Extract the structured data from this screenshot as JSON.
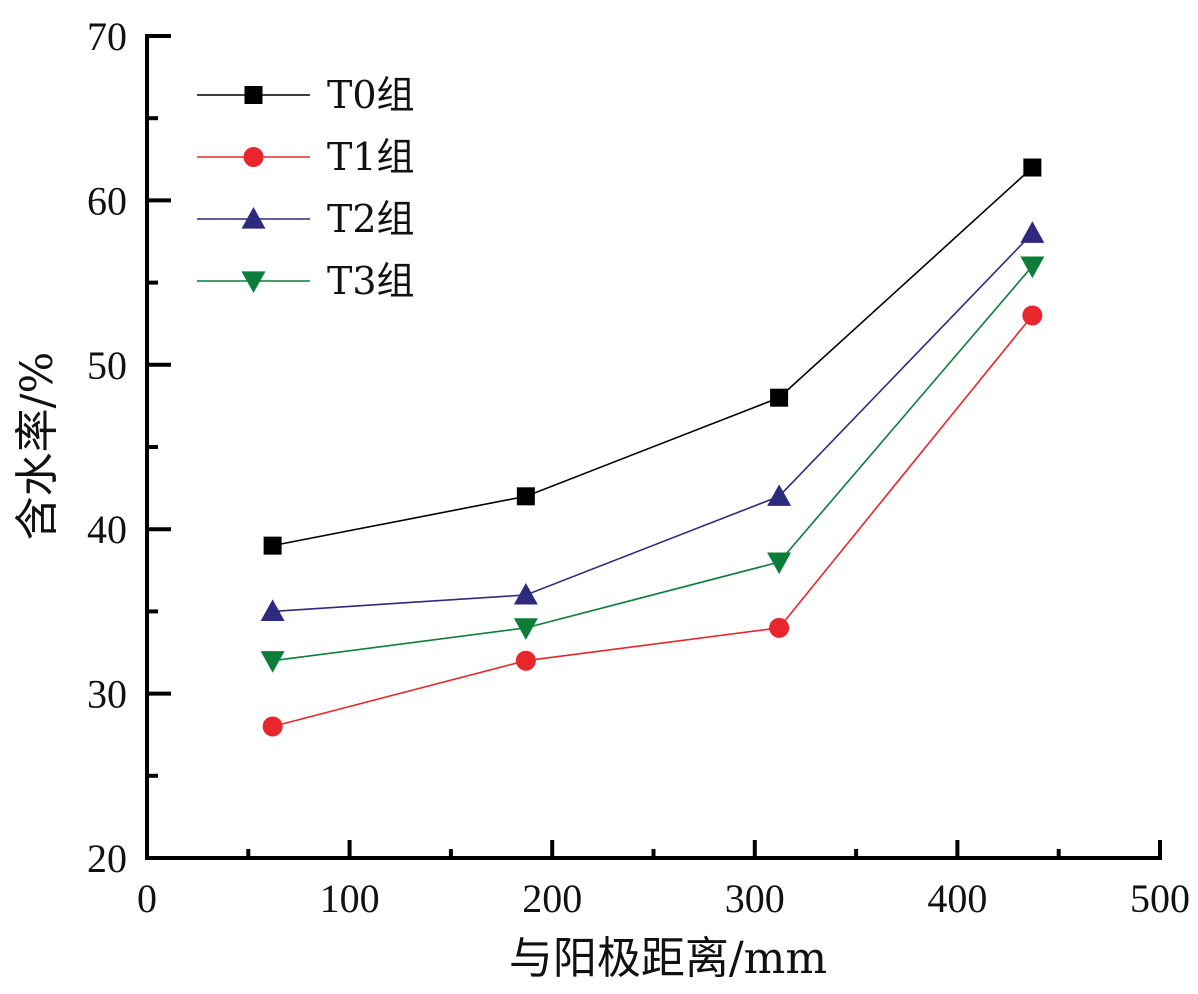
{
  "chart_data": {
    "type": "line",
    "title": "",
    "xlabel": "与阳极距离/mm",
    "ylabel": "含水率/%",
    "xlim": [
      0,
      500
    ],
    "ylim": [
      20,
      70
    ],
    "xticks": [
      0,
      100,
      200,
      300,
      400,
      500
    ],
    "yticks": [
      20,
      30,
      40,
      50,
      60,
      70
    ],
    "x_minor_step": 50,
    "y_minor_step": 5,
    "grid": false,
    "legend_position": "top-left",
    "x": [
      62,
      187,
      312,
      437
    ],
    "series": [
      {
        "name": "T0组",
        "values": [
          39,
          42,
          48,
          62
        ],
        "color": "#000000",
        "marker": "square"
      },
      {
        "name": "T1组",
        "values": [
          28,
          32,
          34,
          53
        ],
        "color": "#e8262c",
        "marker": "circle"
      },
      {
        "name": "T2组",
        "values": [
          35,
          36,
          42,
          58
        ],
        "color": "#2e2a7e",
        "marker": "triangle-up"
      },
      {
        "name": "T3组",
        "values": [
          32,
          34,
          38,
          56
        ],
        "color": "#0d7d3a",
        "marker": "triangle-down"
      }
    ]
  }
}
